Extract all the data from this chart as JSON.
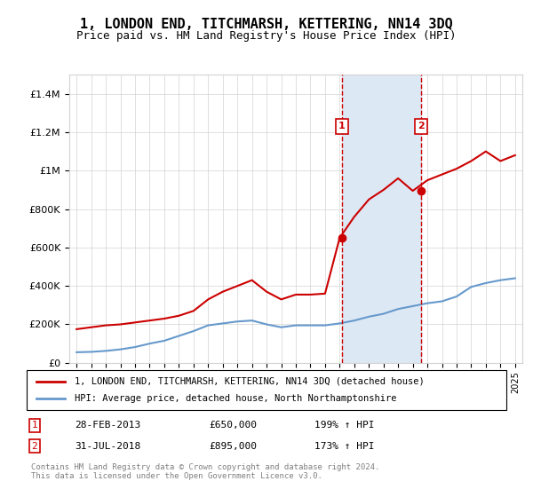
{
  "title": "1, LONDON END, TITCHMARSH, KETTERING, NN14 3DQ",
  "subtitle": "Price paid vs. HM Land Registry's House Price Index (HPI)",
  "legend_line1": "1, LONDON END, TITCHMARSH, KETTERING, NN14 3DQ (detached house)",
  "legend_line2": "HPI: Average price, detached house, North Northamptonshire",
  "transaction1_label": "1",
  "transaction1_date": "28-FEB-2013",
  "transaction1_price": "£650,000",
  "transaction1_hpi": "199% ↑ HPI",
  "transaction2_label": "2",
  "transaction2_date": "31-JUL-2018",
  "transaction2_price": "£895,000",
  "transaction2_hpi": "173% ↑ HPI",
  "copyright": "Contains HM Land Registry data © Crown copyright and database right 2024.\nThis data is licensed under the Open Government Licence v3.0.",
  "red_color": "#cc0000",
  "blue_color": "#6699cc",
  "shaded_color": "#dde8f5",
  "marker_box_color": "#cc0000",
  "ylim": [
    0,
    1500000
  ],
  "yticks": [
    0,
    200000,
    400000,
    600000,
    800000,
    1000000,
    1200000,
    1400000
  ],
  "ytick_labels": [
    "£0",
    "£200K",
    "£400K",
    "£600K",
    "£800K",
    "£1M",
    "£1.2M",
    "£1.4M"
  ],
  "x_start_year": 1995,
  "x_end_year": 2025,
  "transaction1_year": 2013.15,
  "transaction1_value": 650000,
  "transaction2_year": 2018.58,
  "transaction2_value": 895000,
  "hpi_years": [
    1995,
    1996,
    1997,
    1998,
    1999,
    2000,
    2001,
    2002,
    2003,
    2004,
    2005,
    2006,
    2007,
    2008,
    2009,
    2010,
    2011,
    2012,
    2013,
    2014,
    2015,
    2016,
    2017,
    2018,
    2019,
    2020,
    2021,
    2022,
    2023,
    2024,
    2025
  ],
  "hpi_values": [
    55000,
    57000,
    62000,
    70000,
    82000,
    100000,
    115000,
    140000,
    165000,
    195000,
    205000,
    215000,
    220000,
    200000,
    185000,
    195000,
    195000,
    195000,
    205000,
    220000,
    240000,
    255000,
    280000,
    295000,
    310000,
    320000,
    345000,
    395000,
    415000,
    430000,
    440000
  ],
  "red_years": [
    1995,
    1996,
    1997,
    1998,
    1999,
    2000,
    2001,
    2002,
    2003,
    2004,
    2005,
    2006,
    2007,
    2008,
    2009,
    2010,
    2011,
    2012,
    2013,
    2014,
    2015,
    2016,
    2017,
    2018,
    2019,
    2020,
    2021,
    2022,
    2023,
    2024,
    2025
  ],
  "red_values": [
    175000,
    185000,
    195000,
    200000,
    210000,
    220000,
    230000,
    245000,
    270000,
    330000,
    370000,
    400000,
    430000,
    370000,
    330000,
    355000,
    355000,
    360000,
    650000,
    760000,
    850000,
    900000,
    960000,
    895000,
    950000,
    980000,
    1010000,
    1050000,
    1100000,
    1050000,
    1080000
  ]
}
